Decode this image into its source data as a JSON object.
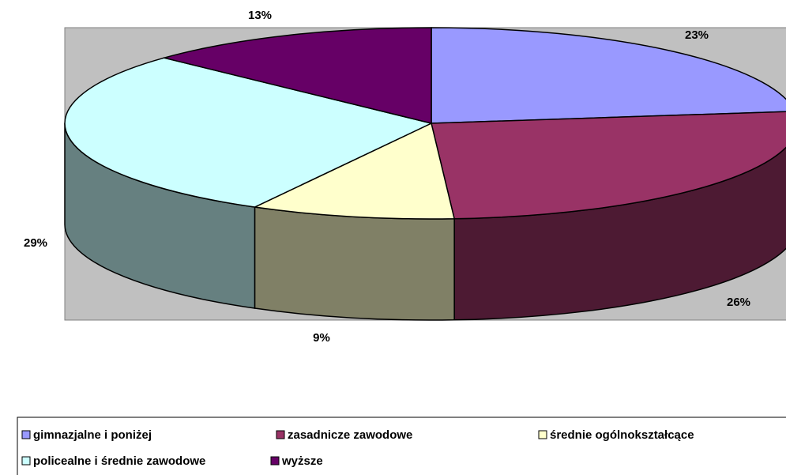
{
  "chart_data": {
    "type": "pie3d",
    "categories": [
      "gimnazjalne i poniżej",
      "zasadnicze zawodowe",
      "średnie ogólnokształcące",
      "policealne i średnie zawodowe",
      "wyższe"
    ],
    "values": [
      23,
      26,
      9,
      29,
      13
    ],
    "value_labels": [
      "23%",
      "26%",
      "9%",
      "29%",
      "13%"
    ],
    "colors": [
      "#9999ff",
      "#993366",
      "#ffffcc",
      "#ccffff",
      "#660066"
    ],
    "legend": "bottom"
  }
}
